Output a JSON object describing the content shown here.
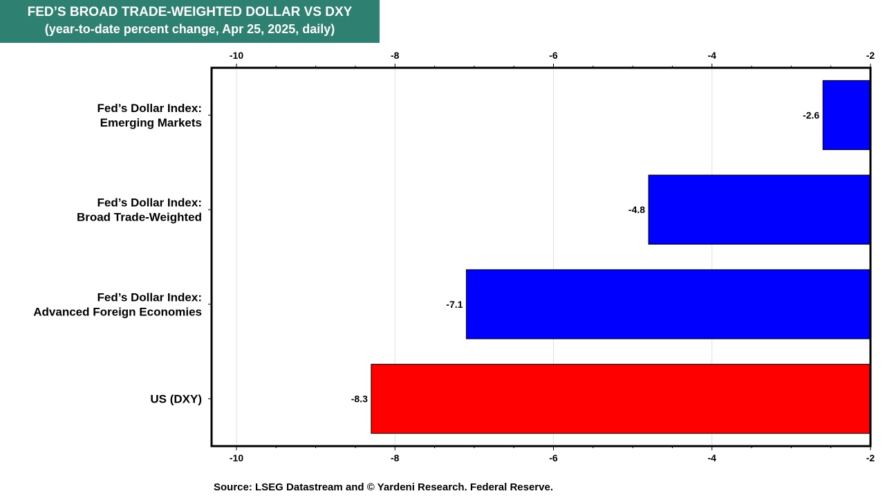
{
  "title_box": {
    "line1": "FED’S BROAD TRADE-WEIGHTED DOLLAR VS DXY",
    "line2": "(year-to-date percent change, Apr 25, 2025, daily)",
    "background": "#2e8070"
  },
  "source": "Source: LSEG Datastream and © Yardeni Research. Federal Reserve.",
  "chart_data": {
    "type": "bar",
    "orientation": "horizontal",
    "categories": [
      [
        "Fed’s Dollar Index:",
        "Emerging Markets"
      ],
      [
        "Fed’s Dollar Index:",
        "Broad Trade-Weighted"
      ],
      [
        "Fed’s Dollar Index:",
        "Advanced Foreign Economies"
      ],
      [
        "US (DXY)"
      ]
    ],
    "values": [
      -2.6,
      -4.8,
      -7.1,
      -8.3
    ],
    "data_labels": [
      "-2.6",
      "-4.8",
      "-7.1",
      "-8.3"
    ],
    "colors": [
      "#0000ff",
      "#0000ff",
      "#0000ff",
      "#ff0000"
    ],
    "xlim": [
      -10,
      -2
    ],
    "xticks": [
      -10,
      -8,
      -6,
      -4,
      -2
    ],
    "xtick_labels": [
      "-10",
      "-8",
      "-6",
      "-4",
      "-2"
    ],
    "x_axis_top": true,
    "x_axis_bottom": true,
    "grid": "vertical"
  }
}
